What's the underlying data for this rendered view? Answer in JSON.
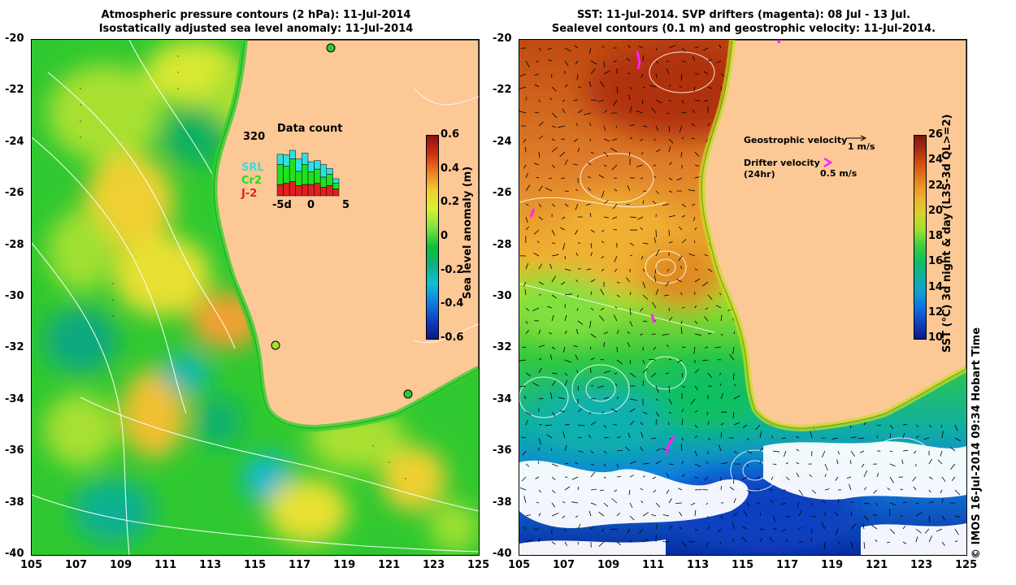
{
  "left": {
    "title_line1": "Atmospheric pressure contours (2 hPa): 11-Jul-2014",
    "title_line2": "Isostatically adjusted sea level anomaly: 11-Jul-2014",
    "colorbar_label": "Sea level anomaly (m)",
    "colorbar_ticks": [
      "0.6",
      "0.4",
      "0.2",
      "0",
      "-0.2",
      "-0.4",
      "-0.6"
    ],
    "colorbar_colors": [
      "#8b1010",
      "#d03010",
      "#f08020",
      "#f0d030",
      "#d8f030",
      "#80e040",
      "#10c030",
      "#10b080",
      "#10c0d0",
      "#1080e0",
      "#1040c0",
      "#0a1a80"
    ],
    "inset": {
      "title": "Data count",
      "max_label": "320",
      "legend": [
        {
          "label": "SRL",
          "color": "#30e0e0"
        },
        {
          "label": "Cr2",
          "color": "#20e020"
        },
        {
          "label": "J-2",
          "color": "#e02020"
        }
      ],
      "x_ticks": [
        "-5d",
        "0",
        "5"
      ],
      "bars": [
        {
          "srl": 0.18,
          "cr2": 0.35,
          "j2": 0.2
        },
        {
          "srl": 0.2,
          "cr2": 0.3,
          "j2": 0.22
        },
        {
          "srl": 0.15,
          "cr2": 0.4,
          "j2": 0.25
        },
        {
          "srl": 0.22,
          "cr2": 0.25,
          "j2": 0.18
        },
        {
          "srl": 0.2,
          "cr2": 0.35,
          "j2": 0.2
        },
        {
          "srl": 0.18,
          "cr2": 0.22,
          "j2": 0.2
        },
        {
          "srl": 0.15,
          "cr2": 0.25,
          "j2": 0.22
        },
        {
          "srl": 0.22,
          "cr2": 0.18,
          "j2": 0.15
        },
        {
          "srl": 0.1,
          "cr2": 0.2,
          "j2": 0.18
        },
        {
          "srl": 0.08,
          "cr2": 0.1,
          "j2": 0.12
        }
      ]
    }
  },
  "right": {
    "title_line1": "SST: 11-Jul-2014. SVP drifters (magenta): 08 Jul - 13 Jul.",
    "title_line2": "Sealevel contours (0.1 m) and geostrophic velocity: 11-Jul-2014.",
    "colorbar_label": "SST (°C) 3d night & day (L3S-3d QL>=2)",
    "colorbar_ticks": [
      "26",
      "24",
      "22",
      "20",
      "18",
      "16",
      "14",
      "12",
      "10"
    ],
    "colorbar_colors": [
      "#7a1a10",
      "#b03010",
      "#d85a10",
      "#e88a20",
      "#f0b030",
      "#d8d030",
      "#a0e030",
      "#40d040",
      "#10c060",
      "#10b0a0",
      "#10a0d0",
      "#1070e0",
      "#1040c0",
      "#0a1a80"
    ],
    "geo_label": "Geostrophic velocity",
    "geo_scale": "1 m/s",
    "drifter_label_1": "Drifter velocity",
    "drifter_label_2": "(24hr)",
    "drifter_scale": "0.5 m/s"
  },
  "y_ticks": [
    "-20",
    "-22",
    "-24",
    "-26",
    "-28",
    "-30",
    "-32",
    "-34",
    "-36",
    "-38",
    "-40"
  ],
  "x_ticks": [
    "105",
    "107",
    "109",
    "111",
    "113",
    "115",
    "117",
    "119",
    "121",
    "123",
    "125"
  ],
  "footer": "© IMOS 16-Jul-2014 09:34 Hobart Time",
  "colors": {
    "land": "#fbc896",
    "coast": "#000000",
    "contour": "#ffffff",
    "drifter": "#ff20ff"
  }
}
